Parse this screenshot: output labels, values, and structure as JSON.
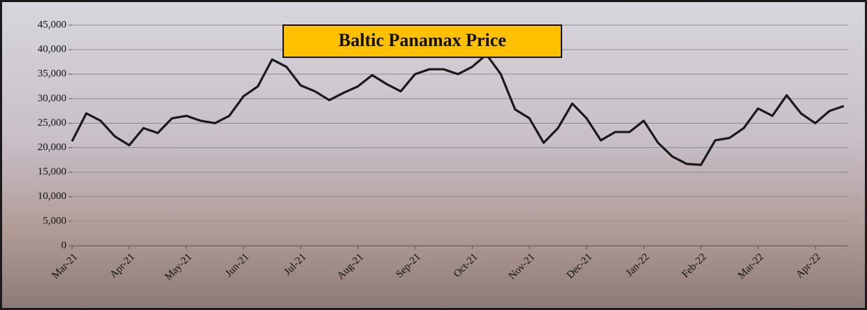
{
  "chart_data": {
    "type": "line",
    "title": "Baltic Panamax Price",
    "series": [
      {
        "name": "Baltic Panamax Price",
        "color": "#1a1a1a",
        "values": [
          21300,
          27000,
          25500,
          22300,
          20500,
          24000,
          23000,
          26000,
          26500,
          25500,
          25000,
          26500,
          30500,
          32500,
          38000,
          36500,
          32700,
          31500,
          29700,
          31200,
          32500,
          34800,
          33000,
          31500,
          35000,
          36000,
          36000,
          35000,
          36500,
          39000,
          35000,
          27800,
          26000,
          21000,
          24000,
          29000,
          26000,
          21500,
          23200,
          23200,
          25500,
          21000,
          18200,
          16700,
          16500,
          21500,
          22000,
          24000,
          28000,
          26500,
          30700,
          27000,
          25000,
          27500,
          28500
        ]
      }
    ],
    "xlim": [
      0,
      54.3
    ],
    "xticks": [
      {
        "value": 0,
        "label": "Mar-21"
      },
      {
        "value": 4,
        "label": "Apr-21"
      },
      {
        "value": 8,
        "label": "May-21"
      },
      {
        "value": 12,
        "label": "Jun-21"
      },
      {
        "value": 16,
        "label": "Jul-21"
      },
      {
        "value": 20,
        "label": "Aug-21"
      },
      {
        "value": 24,
        "label": "Sep-21"
      },
      {
        "value": 28,
        "label": "Oct-21"
      },
      {
        "value": 32,
        "label": "Nov-21"
      },
      {
        "value": 36,
        "label": "Dec-21"
      },
      {
        "value": 40,
        "label": "Jan-22"
      },
      {
        "value": 44,
        "label": "Feb-22"
      },
      {
        "value": 48,
        "label": "Mar-22"
      },
      {
        "value": 52,
        "label": "Apr-22"
      }
    ],
    "ylim": [
      0,
      45000
    ],
    "yticks": [
      0,
      {
        "value": 5000,
        "label": "5,000"
      },
      {
        "value": 10000,
        "label": "10,000"
      },
      {
        "value": 15000,
        "label": "15,000"
      },
      {
        "value": 20000,
        "label": "20,000"
      },
      {
        "value": 25000,
        "label": "25,000"
      },
      {
        "value": 30000,
        "label": "30,000"
      },
      {
        "value": 35000,
        "label": "35,000"
      },
      {
        "value": 40000,
        "label": "40,000"
      },
      {
        "value": 45000,
        "label": "45,000"
      }
    ],
    "grid": true
  }
}
